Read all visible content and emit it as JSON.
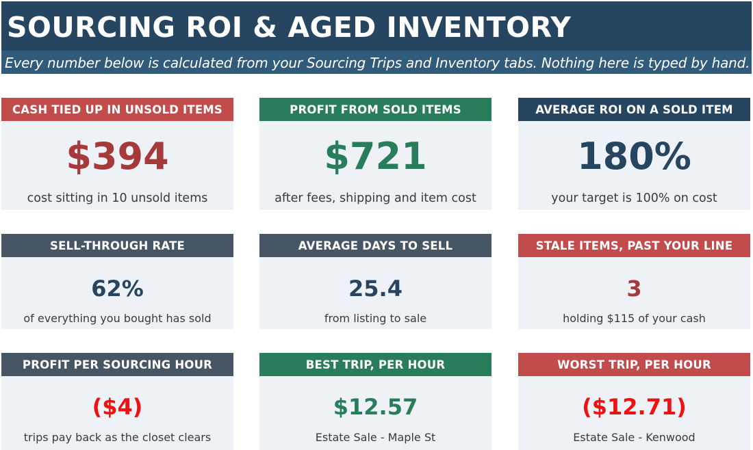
{
  "header": {
    "title": "SOURCING ROI & AGED INVENTORY",
    "subtitle": "Every number below is calculated from your Sourcing Trips and Inventory tabs. Nothing here is typed by hand."
  },
  "cards": {
    "cash_tied_up": {
      "label": "CASH TIED UP IN UNSOLD ITEMS",
      "value": "$394",
      "caption": "cost sitting in 10 unsold items"
    },
    "profit_sold": {
      "label": "PROFIT FROM SOLD ITEMS",
      "value": "$721",
      "caption": "after fees, shipping and item cost"
    },
    "avg_roi": {
      "label": "AVERAGE ROI ON A SOLD ITEM",
      "value": "180%",
      "caption": "your target is 100% on cost"
    },
    "sell_through": {
      "label": "SELL-THROUGH RATE",
      "value": "62%",
      "caption": "of everything you bought has sold"
    },
    "avg_days": {
      "label": "AVERAGE DAYS TO SELL",
      "value": "25.4",
      "caption": "from listing to sale"
    },
    "stale_items": {
      "label": "STALE ITEMS, PAST YOUR LINE",
      "value": "3",
      "caption": "holding $115 of your cash"
    },
    "profit_per_hour": {
      "label": "PROFIT PER SOURCING HOUR",
      "value": "($4)",
      "caption": "trips pay back as the closet clears"
    },
    "best_trip": {
      "label": "BEST TRIP, PER HOUR",
      "value": "$12.57",
      "caption": "Estate Sale - Maple St"
    },
    "worst_trip": {
      "label": "WORST TRIP, PER HOUR",
      "value": "($12.71)",
      "caption": "Estate Sale - Kenwood"
    }
  },
  "colors": {
    "title_bg": "#264560",
    "subtitle_bg": "#305b7a",
    "header_red": "#c24b4b",
    "header_green": "#2a7d5a",
    "header_navy": "#264560",
    "header_slate": "#475664",
    "card_bg": "#eef2f6",
    "negative_red": "#ee1111"
  }
}
